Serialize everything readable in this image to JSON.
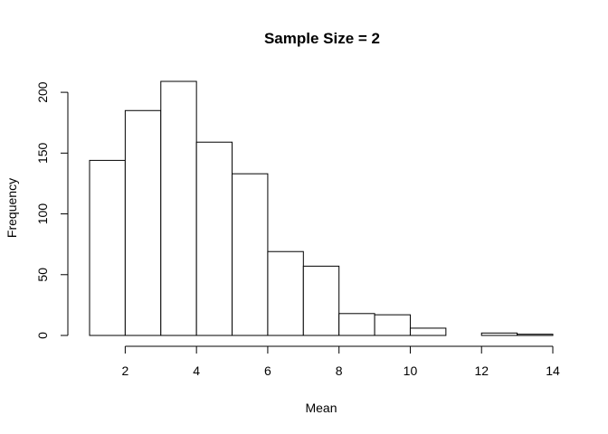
{
  "chart_data": {
    "type": "bar",
    "title": "Sample Size = 2",
    "xlabel": "Mean",
    "ylabel": "Frequency",
    "bins": [
      {
        "start": 1,
        "end": 2,
        "count": 144
      },
      {
        "start": 2,
        "end": 3,
        "count": 185
      },
      {
        "start": 3,
        "end": 4,
        "count": 209
      },
      {
        "start": 4,
        "end": 5,
        "count": 159
      },
      {
        "start": 5,
        "end": 6,
        "count": 133
      },
      {
        "start": 6,
        "end": 7,
        "count": 69
      },
      {
        "start": 7,
        "end": 8,
        "count": 57
      },
      {
        "start": 8,
        "end": 9,
        "count": 18
      },
      {
        "start": 9,
        "end": 10,
        "count": 17
      },
      {
        "start": 10,
        "end": 11,
        "count": 6
      },
      {
        "start": 11,
        "end": 12,
        "count": 0
      },
      {
        "start": 12,
        "end": 13,
        "count": 2
      },
      {
        "start": 13,
        "end": 14,
        "count": 1
      }
    ],
    "xlim": [
      1,
      14
    ],
    "ylim": [
      0,
      209
    ],
    "x_ticks": [
      2,
      4,
      6,
      8,
      10,
      12,
      14
    ],
    "y_ticks": [
      0,
      50,
      100,
      150,
      200
    ],
    "grid": false,
    "colors": {
      "bar_fill": "#ffffff",
      "bar_stroke": "#000000"
    }
  }
}
